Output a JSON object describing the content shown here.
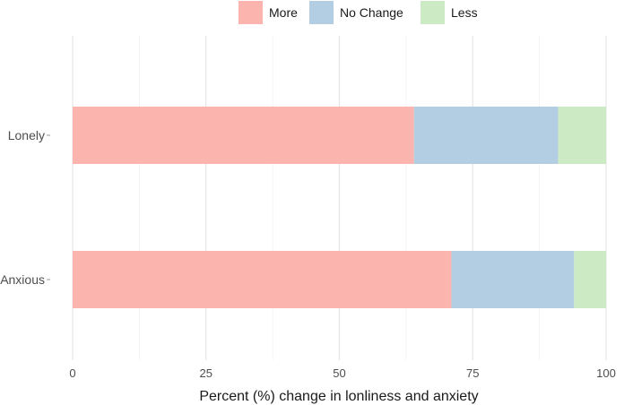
{
  "chart_data": {
    "type": "bar",
    "orientation": "horizontal",
    "stacked": true,
    "categories": [
      "Lonely",
      "Anxious"
    ],
    "series": [
      {
        "name": "More",
        "color": "#fbb4ae",
        "values": [
          64,
          71
        ]
      },
      {
        "name": "No Change",
        "color": "#b3cde3",
        "values": [
          27,
          23
        ]
      },
      {
        "name": "Less",
        "color": "#ccebc5",
        "values": [
          9,
          6
        ]
      }
    ],
    "xlabel": "Percent (%) change in lonliness and anxiety",
    "ylabel": "",
    "xlim": [
      0,
      100
    ],
    "xticks": [
      0,
      25,
      50,
      75,
      100
    ],
    "grid": true,
    "legend_position": "top"
  }
}
